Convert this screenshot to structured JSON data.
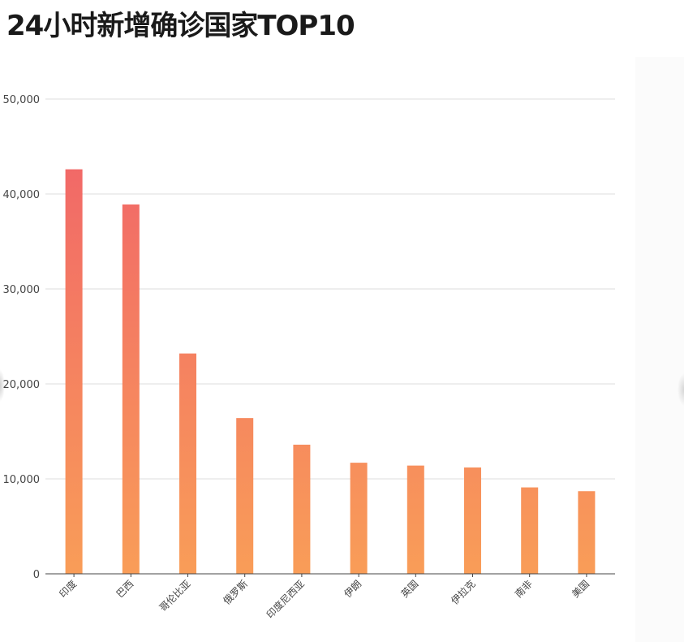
{
  "title": "24小时新增确诊国家TOP10",
  "colors": {
    "bar_top": "#f0606a",
    "bar_bottom": "#f99d58",
    "grid": "#dcdcdc",
    "axis": "#444444",
    "title": "#1a1a1a"
  },
  "chart_data": {
    "type": "bar",
    "title": "24小时新增确诊国家TOP10",
    "xlabel": "",
    "ylabel": "",
    "categories": [
      "印度",
      "巴西",
      "哥伦比亚",
      "俄罗斯",
      "印度尼西亚",
      "伊朗",
      "英国",
      "伊拉克",
      "南非",
      "美国"
    ],
    "values": [
      42600,
      38900,
      23200,
      16400,
      13600,
      11700,
      11400,
      11200,
      9100,
      8700
    ],
    "ylim": [
      0,
      50000
    ],
    "yticks": [
      0,
      10000,
      20000,
      30000,
      40000,
      50000
    ],
    "ytick_labels": [
      "0",
      "10,000",
      "20,000",
      "30,000",
      "40,000",
      "50,000"
    ],
    "grid": true,
    "legend": "none"
  }
}
